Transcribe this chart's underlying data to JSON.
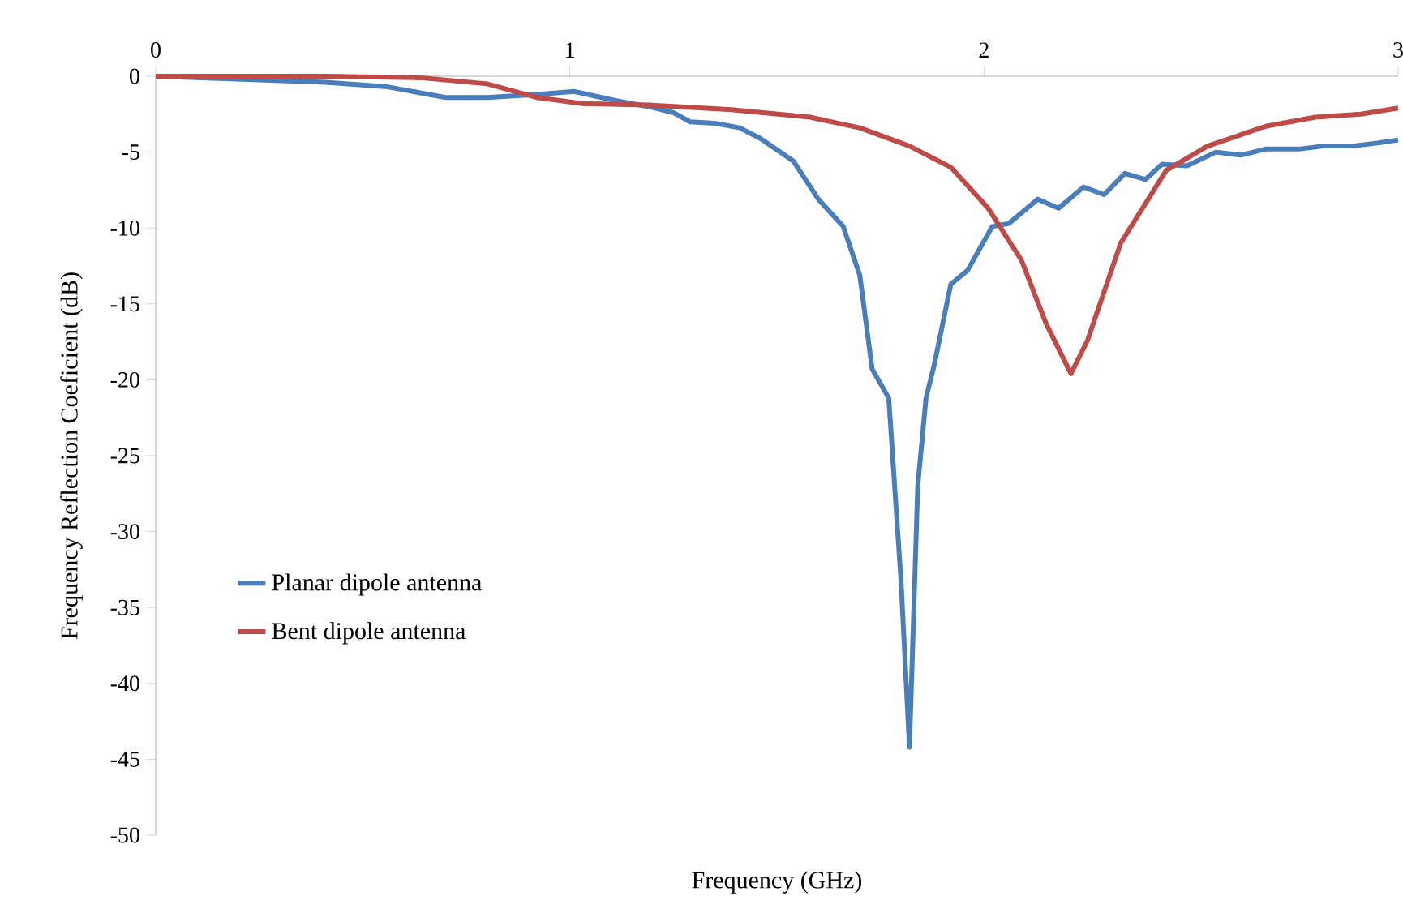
{
  "chart_data": {
    "type": "line",
    "xlabel": "Frequency (GHz)",
    "ylabel": "Frequency Reflection Coeficient  (dB)",
    "xlim": [
      0,
      3
    ],
    "xticks": [
      0,
      1,
      2,
      3
    ],
    "ylim": [
      -50,
      0
    ],
    "yticks": [
      -50,
      -45,
      -40,
      -35,
      -30,
      -25,
      -20,
      -15,
      -10,
      -5,
      0
    ],
    "legend": "left",
    "grid": false,
    "marker": "none",
    "line_style": "solid",
    "series": [
      {
        "name": "Planar dipole antenna",
        "color": "#4a7ebb",
        "x": [
          0,
          0.21,
          0.41,
          0.56,
          0.7,
          0.8,
          0.92,
          1.01,
          1.11,
          1.19,
          1.25,
          1.29,
          1.35,
          1.41,
          1.46,
          1.54,
          1.6,
          1.66,
          1.7,
          1.73,
          1.77,
          1.8,
          1.82,
          1.84,
          1.86,
          1.88,
          1.92,
          1.96,
          2.02,
          2.06,
          2.13,
          2.18,
          2.24,
          2.29,
          2.34,
          2.39,
          2.43,
          2.49,
          2.56,
          2.62,
          2.68,
          2.76,
          2.82,
          2.89,
          2.95,
          3.0
        ],
        "values": [
          0,
          -0.2,
          -0.4,
          -0.7,
          -1.4,
          -1.4,
          -1.2,
          -1.0,
          -1.6,
          -2.0,
          -2.4,
          -3.0,
          -3.1,
          -3.4,
          -4.1,
          -5.6,
          -8.1,
          -9.9,
          -13.1,
          -19.3,
          -21.2,
          -33.4,
          -44.2,
          -27,
          -21.2,
          -19,
          -13.7,
          -12.8,
          -9.9,
          -9.7,
          -8.1,
          -8.7,
          -7.3,
          -7.8,
          -6.4,
          -6.8,
          -5.8,
          -5.9,
          -5.0,
          -5.2,
          -4.8,
          -4.8,
          -4.6,
          -4.6,
          -4.4,
          -4.2
        ]
      },
      {
        "name": "Bent dipole antenna",
        "color": "#be4b48",
        "x": [
          0,
          0.41,
          0.64,
          0.8,
          0.92,
          1.03,
          1.19,
          1.39,
          1.58,
          1.7,
          1.82,
          1.92,
          2.01,
          2.09,
          2.15,
          2.21,
          2.25,
          2.33,
          2.44,
          2.54,
          2.68,
          2.8,
          2.91,
          3.0
        ],
        "values": [
          0,
          0,
          -0.1,
          -0.5,
          -1.4,
          -1.8,
          -1.9,
          -2.2,
          -2.7,
          -3.4,
          -4.6,
          -6.0,
          -8.7,
          -12.1,
          -16.3,
          -19.6,
          -17.4,
          -11.0,
          -6.2,
          -4.6,
          -3.3,
          -2.7,
          -2.5,
          -2.1
        ]
      }
    ]
  }
}
